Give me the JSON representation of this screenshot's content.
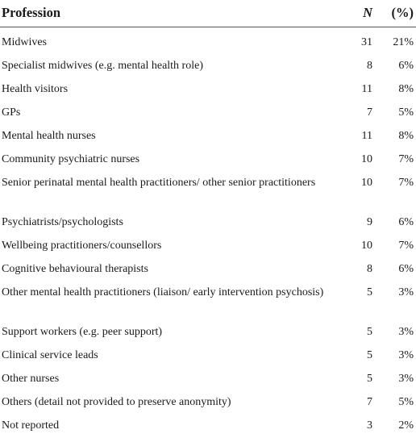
{
  "table": {
    "headers": {
      "profession": "Profession",
      "n": "N",
      "pct": "(%)"
    },
    "rows": [
      {
        "profession": "Midwives",
        "n": "31",
        "pct": "21%"
      },
      {
        "profession": "Specialist midwives (e.g. mental health role)",
        "n": "8",
        "pct": "6%"
      },
      {
        "profession": "Health visitors",
        "n": "11",
        "pct": "8%"
      },
      {
        "profession": "GPs",
        "n": "7",
        "pct": "5%"
      },
      {
        "profession": "Mental health nurses",
        "n": "11",
        "pct": "8%"
      },
      {
        "profession": "Community psychiatric nurses",
        "n": "10",
        "pct": "7%"
      },
      {
        "profession": "Senior perinatal mental health practitioners/ other senior practitioners",
        "n": "10",
        "pct": "7%"
      },
      {
        "profession": "Psychiatrists/psychologists",
        "n": "9",
        "pct": "6%"
      },
      {
        "profession": "Wellbeing practitioners/counsellors",
        "n": "10",
        "pct": "7%"
      },
      {
        "profession": "Cognitive behavioural therapists",
        "n": "8",
        "pct": "6%"
      },
      {
        "profession": "Other mental health practitioners (liaison/ early intervention psychosis)",
        "n": "5",
        "pct": "3%"
      },
      {
        "profession": "Support workers (e.g. peer support)",
        "n": "5",
        "pct": "3%"
      },
      {
        "profession": "Clinical service leads",
        "n": "5",
        "pct": "3%"
      },
      {
        "profession": "Other nurses",
        "n": "5",
        "pct": "3%"
      },
      {
        "profession": "Others (detail not provided to preserve anonymity)",
        "n": "7",
        "pct": "5%"
      },
      {
        "profession": "Not reported",
        "n": "3",
        "pct": "2%"
      }
    ]
  }
}
